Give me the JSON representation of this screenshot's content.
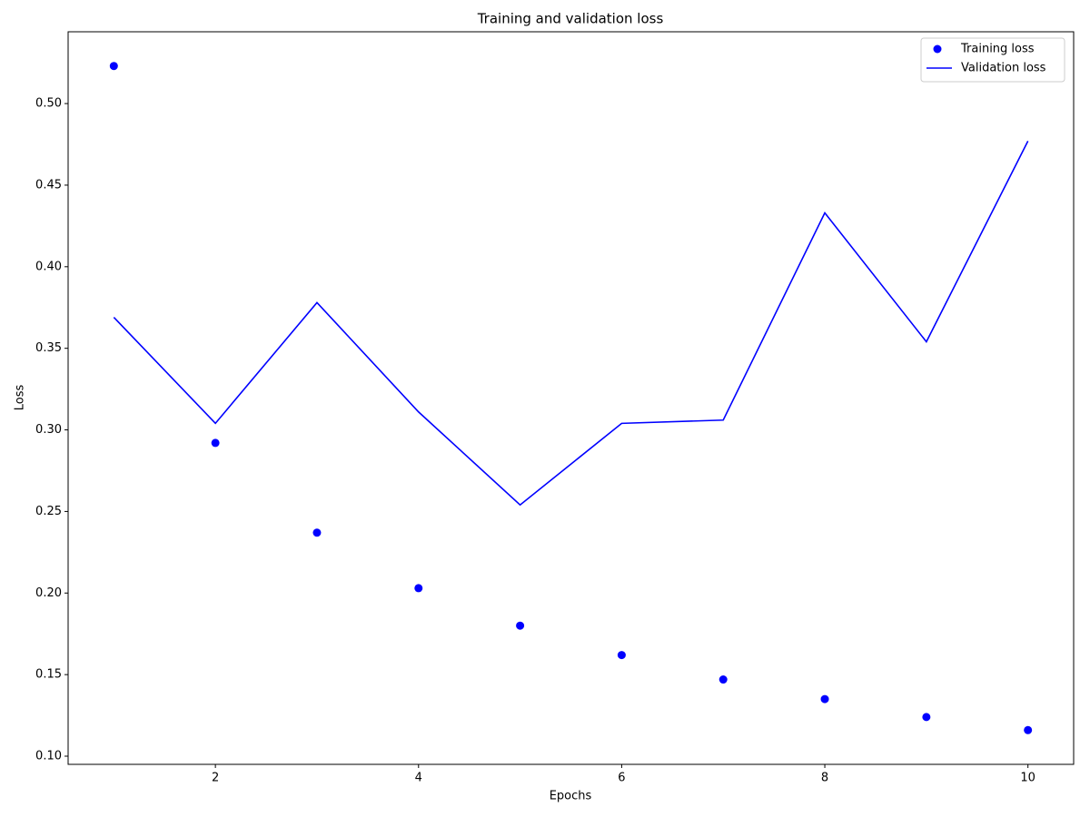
{
  "chart_data": {
    "type": "line",
    "title": "Training and validation loss",
    "xlabel": "Epochs",
    "ylabel": "Loss",
    "x": [
      1,
      2,
      3,
      4,
      5,
      6,
      7,
      8,
      9,
      10
    ],
    "series": [
      {
        "name": "Training loss",
        "color": "#0000ff",
        "style": "markers",
        "values": [
          0.523,
          0.292,
          0.237,
          0.203,
          0.18,
          0.162,
          0.147,
          0.135,
          0.124,
          0.116
        ]
      },
      {
        "name": "Validation loss",
        "color": "#0000ff",
        "style": "line",
        "values": [
          0.369,
          0.304,
          0.378,
          0.311,
          0.254,
          0.304,
          0.306,
          0.433,
          0.354,
          0.477
        ]
      }
    ],
    "xlim": [
      0.55,
      10.45
    ],
    "xticks": [
      2,
      4,
      6,
      8,
      10
    ],
    "ylim": [
      0.095,
      0.544
    ],
    "yticks": [
      {
        "value": 0.1,
        "label": "0.10"
      },
      {
        "value": 0.15,
        "label": "0.15"
      },
      {
        "value": 0.2,
        "label": "0.20"
      },
      {
        "value": 0.25,
        "label": "0.25"
      },
      {
        "value": 0.3,
        "label": "0.30"
      },
      {
        "value": 0.35,
        "label": "0.35"
      },
      {
        "value": 0.4,
        "label": "0.40"
      },
      {
        "value": 0.45,
        "label": "0.45"
      },
      {
        "value": 0.5,
        "label": "0.50"
      }
    ],
    "legend": "upper right"
  }
}
